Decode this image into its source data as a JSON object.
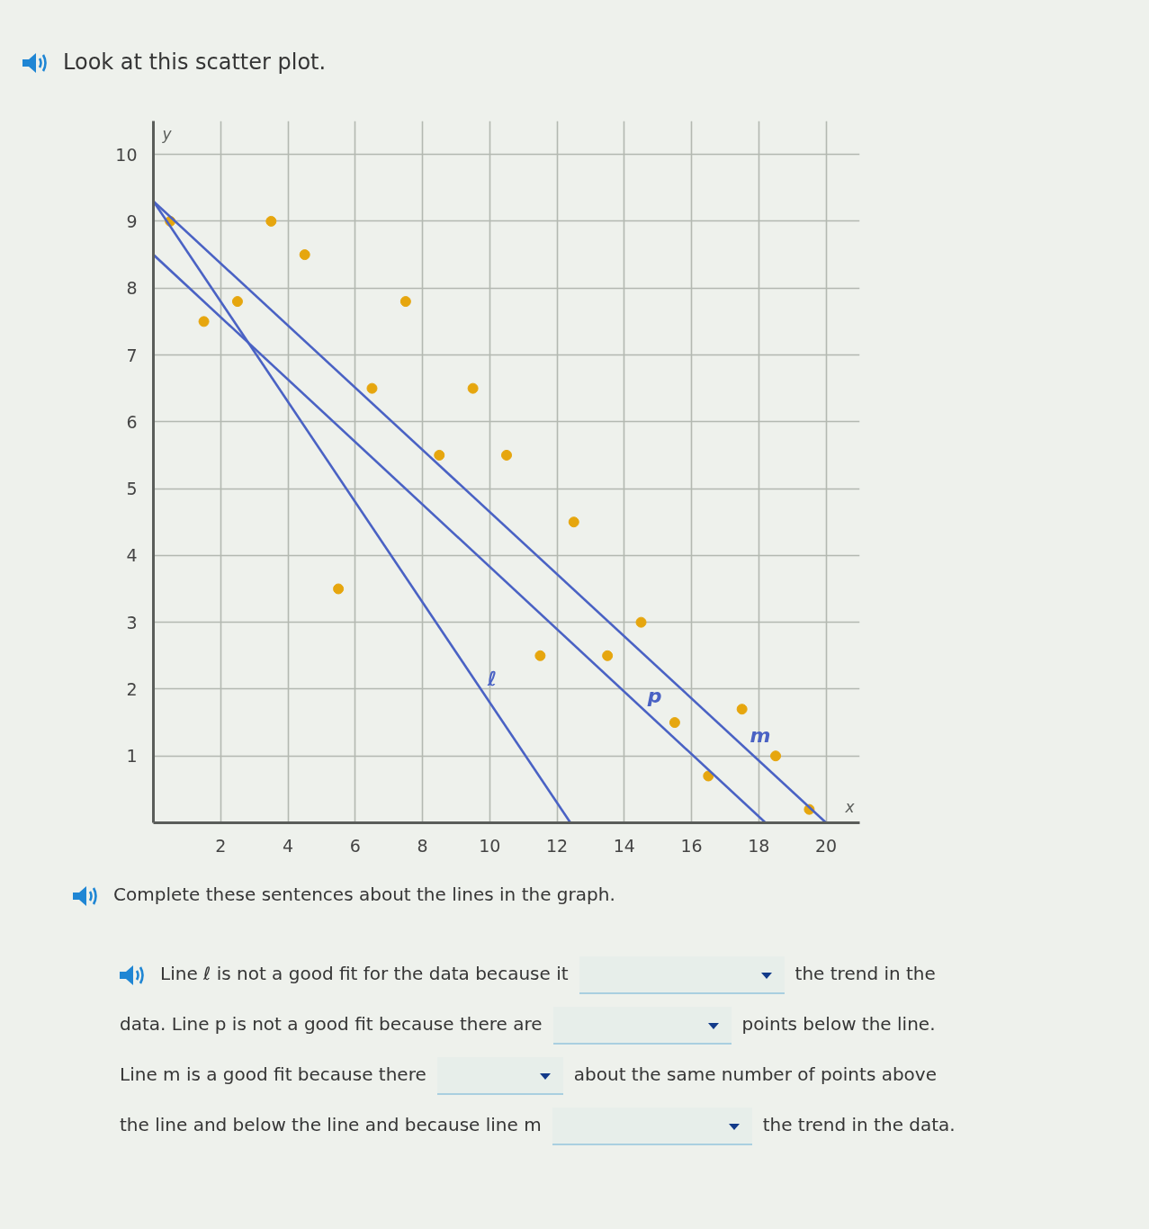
{
  "chart_data": {
    "type": "scatter",
    "title": "Look at this scatter plot.",
    "xlabel": "x",
    "ylabel": "y",
    "series": [
      {
        "color": "#e6a60e",
        "marker": "circle",
        "x": [
          0.5,
          1.5,
          2.5,
          3.5,
          4.5,
          5.5,
          6.5,
          7.5,
          8.5,
          9.5,
          10.5,
          11.5,
          12.5,
          13.5,
          14.5,
          15.5,
          16.5,
          17.5,
          18.5,
          19.5
        ],
        "values": [
          9,
          7.5,
          7.8,
          9,
          8.5,
          3.5,
          6.5,
          7.8,
          5.5,
          6.5,
          5.5,
          2.5,
          4.5,
          2.5,
          3,
          1.5,
          0.7,
          1.7,
          1,
          0.2
        ]
      },
      {
        "type": "line",
        "name": "ℓ",
        "color": "#4a62c4",
        "marker": "none",
        "x": [
          0,
          12.4
        ],
        "values": [
          9.3,
          0
        ]
      },
      {
        "type": "line",
        "name": "p",
        "color": "#4a62c4",
        "marker": "none",
        "x": [
          0,
          18.2
        ],
        "values": [
          8.5,
          0
        ]
      },
      {
        "type": "line",
        "name": "m",
        "color": "#4a62c4",
        "marker": "none",
        "x": [
          0,
          20
        ],
        "values": [
          9.3,
          0
        ]
      }
    ],
    "xlim": [
      0,
      21
    ],
    "ylim": [
      0,
      10.5
    ],
    "xticks": [
      2,
      4,
      6,
      8,
      10,
      12,
      14,
      16,
      18,
      20
    ],
    "yticks": [
      1,
      2,
      3,
      4,
      5,
      6,
      7,
      8,
      9,
      10
    ],
    "grid": true,
    "annotations": [
      "Complete these sentences about the lines in the graph.",
      "Line ℓ is not a good fit for the data because it",
      "the trend in the",
      "data. Line p is not a good fit because there are",
      "points below the line.",
      "Line m is a good fit because there",
      "about the same number of points above",
      "the line and below the line and because line m",
      "the trend in the data."
    ]
  }
}
